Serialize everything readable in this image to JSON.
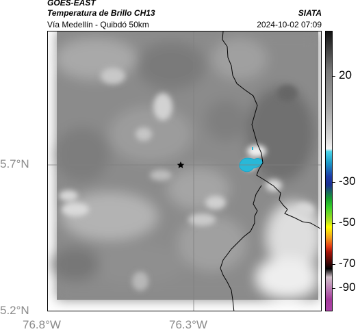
{
  "header": {
    "satellite": "GOES-EAST",
    "product": "Temperatura de Brillo CH13",
    "route": "Vía Medellín - Quibdó 50km",
    "org": "SIATA",
    "datetime": "2024-10-02 07:09"
  },
  "map": {
    "lat_ticks": [
      "5.7°N",
      "5.2°N"
    ],
    "lon_ticks": [
      "76.8°W",
      "76.3°W"
    ],
    "marker_icon": "star-icon"
  },
  "colorbar": {
    "labels": [
      "20",
      "-30",
      "-50",
      "-70",
      "-90"
    ],
    "accent_colors": {
      "cold_cloud": "#29b8d8",
      "background": "#8a8a8a"
    }
  }
}
